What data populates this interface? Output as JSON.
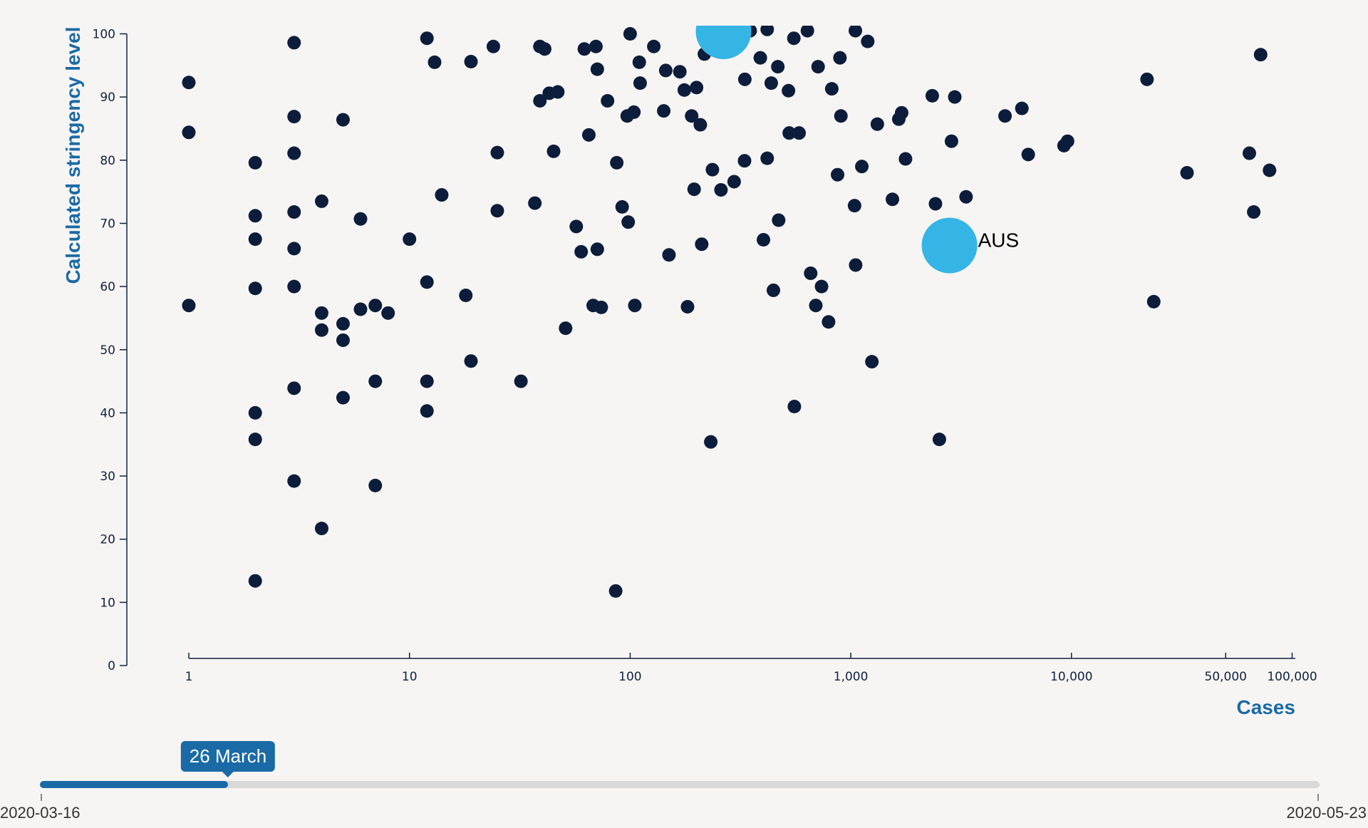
{
  "chart_data": {
    "type": "scatter",
    "title": "",
    "xlabel": "Cases",
    "ylabel": "Calculated stringency level",
    "x_scale": "log",
    "xlim": [
      1,
      100000
    ],
    "ylim": [
      0,
      100
    ],
    "x_ticks": [
      1,
      10,
      100,
      1000,
      10000,
      50000,
      100000
    ],
    "x_tick_labels": [
      "1",
      "10",
      "100",
      "1,000",
      "10,000",
      "50,000",
      "100,000"
    ],
    "y_ticks": [
      0,
      10,
      20,
      30,
      40,
      50,
      60,
      70,
      80,
      90,
      100
    ],
    "y_tick_labels": [
      "0",
      "10",
      "20",
      "30",
      "40",
      "50",
      "60",
      "70",
      "80",
      "90",
      "100"
    ],
    "grid": false,
    "point_color": "#0c1d3b",
    "highlight_color": "#35b5e5",
    "points": [
      [
        1,
        92.3
      ],
      [
        1,
        84.4
      ],
      [
        1,
        57
      ],
      [
        2,
        79.6
      ],
      [
        2,
        71.2
      ],
      [
        2,
        67.5
      ],
      [
        2,
        59.7
      ],
      [
        2,
        40
      ],
      [
        2,
        35.8
      ],
      [
        2,
        13.4
      ],
      [
        3,
        98.6
      ],
      [
        3,
        86.9
      ],
      [
        3,
        81.1
      ],
      [
        3,
        71.8
      ],
      [
        3,
        66
      ],
      [
        3,
        60
      ],
      [
        3,
        43.9
      ],
      [
        3,
        29.2
      ],
      [
        4,
        73.5
      ],
      [
        4,
        55.8
      ],
      [
        4,
        53.1
      ],
      [
        4,
        21.7
      ],
      [
        5,
        86.4
      ],
      [
        5,
        54.1
      ],
      [
        5,
        51.5
      ],
      [
        5,
        42.4
      ],
      [
        6,
        70.7
      ],
      [
        6,
        56.4
      ],
      [
        7,
        57
      ],
      [
        7,
        45
      ],
      [
        7,
        28.5
      ],
      [
        8,
        55.8
      ],
      [
        10,
        67.5
      ],
      [
        12,
        99.3
      ],
      [
        12,
        60.7
      ],
      [
        12,
        45
      ],
      [
        12,
        40.3
      ],
      [
        13,
        95.5
      ],
      [
        14,
        74.5
      ],
      [
        18,
        58.6
      ],
      [
        19,
        95.6
      ],
      [
        19,
        48.2
      ],
      [
        24,
        98
      ],
      [
        25,
        81.2
      ],
      [
        25,
        72
      ],
      [
        32,
        45
      ],
      [
        37,
        73.2
      ],
      [
        39,
        98
      ],
      [
        39,
        89.4
      ],
      [
        41,
        97.6
      ],
      [
        43,
        90.6
      ],
      [
        45,
        81.4
      ],
      [
        47,
        90.8
      ],
      [
        51,
        53.4
      ],
      [
        57,
        69.5
      ],
      [
        60,
        65.5
      ],
      [
        62,
        97.6
      ],
      [
        65,
        84
      ],
      [
        68,
        57
      ],
      [
        70,
        98
      ],
      [
        71,
        65.9
      ],
      [
        71,
        94.4
      ],
      [
        74,
        56.7
      ],
      [
        79,
        89.4
      ],
      [
        86,
        11.8
      ],
      [
        87,
        79.6
      ],
      [
        92,
        72.6
      ],
      [
        97,
        87
      ],
      [
        98,
        70.2
      ],
      [
        100,
        100
      ],
      [
        104,
        87.6
      ],
      [
        105,
        57
      ],
      [
        110,
        95.5
      ],
      [
        111,
        92.2
      ],
      [
        128,
        98
      ],
      [
        142,
        87.8
      ],
      [
        145,
        94.2
      ],
      [
        150,
        65
      ],
      [
        168,
        94
      ],
      [
        176,
        91.1
      ],
      [
        182,
        56.8
      ],
      [
        190,
        87
      ],
      [
        195,
        75.4
      ],
      [
        200,
        91.5
      ],
      [
        208,
        85.6
      ],
      [
        211,
        66.7
      ],
      [
        217,
        96.8
      ],
      [
        232,
        35.4
      ],
      [
        236,
        78.5
      ],
      [
        258,
        75.3
      ],
      [
        296,
        76.6
      ],
      [
        330,
        79.9
      ],
      [
        331,
        92.8
      ],
      [
        350,
        100.5
      ],
      [
        389,
        96.2
      ],
      [
        402,
        67.4
      ],
      [
        418,
        100.7
      ],
      [
        418,
        80.3
      ],
      [
        436,
        92.2
      ],
      [
        446,
        59.4
      ],
      [
        467,
        94.8
      ],
      [
        471,
        70.5
      ],
      [
        522,
        91
      ],
      [
        526,
        84.3
      ],
      [
        552,
        99.3
      ],
      [
        555,
        41
      ],
      [
        583,
        84.3
      ],
      [
        636,
        100.5
      ],
      [
        658,
        62.1
      ],
      [
        694,
        57
      ],
      [
        711,
        94.8
      ],
      [
        737,
        60
      ],
      [
        793,
        54.4
      ],
      [
        820,
        91.3
      ],
      [
        871,
        77.7
      ],
      [
        893,
        96.2
      ],
      [
        902,
        87
      ],
      [
        1040,
        72.8
      ],
      [
        1049,
        100.5
      ],
      [
        1052,
        63.4
      ],
      [
        1122,
        79
      ],
      [
        1193,
        98.8
      ],
      [
        1246,
        48.1
      ],
      [
        1319,
        85.7
      ],
      [
        1544,
        73.8
      ],
      [
        1650,
        86.5
      ],
      [
        1700,
        87.5
      ],
      [
        1770,
        80.2
      ],
      [
        2340,
        90.2
      ],
      [
        2420,
        73.1
      ],
      [
        2520,
        35.8
      ],
      [
        2860,
        83
      ],
      [
        2960,
        90
      ],
      [
        3330,
        74.2
      ],
      [
        5000,
        87
      ],
      [
        5960,
        88.2
      ],
      [
        6370,
        80.9
      ],
      [
        9250,
        82.3
      ],
      [
        9600,
        83
      ],
      [
        22000,
        92.8
      ],
      [
        23600,
        57.6
      ],
      [
        33400,
        78
      ],
      [
        64000,
        81.1
      ],
      [
        67000,
        71.8
      ],
      [
        72000,
        96.7
      ],
      [
        79000,
        78.4
      ]
    ],
    "highlights": [
      {
        "label": "AUS",
        "x": 2800,
        "y": 66.5
      },
      {
        "label": "",
        "x": 265,
        "y": 100.4
      }
    ]
  },
  "timeline": {
    "current_label": "26 March",
    "progress": 0.147,
    "start_label": "2020-03-16",
    "end_label": "2020-05-23"
  }
}
